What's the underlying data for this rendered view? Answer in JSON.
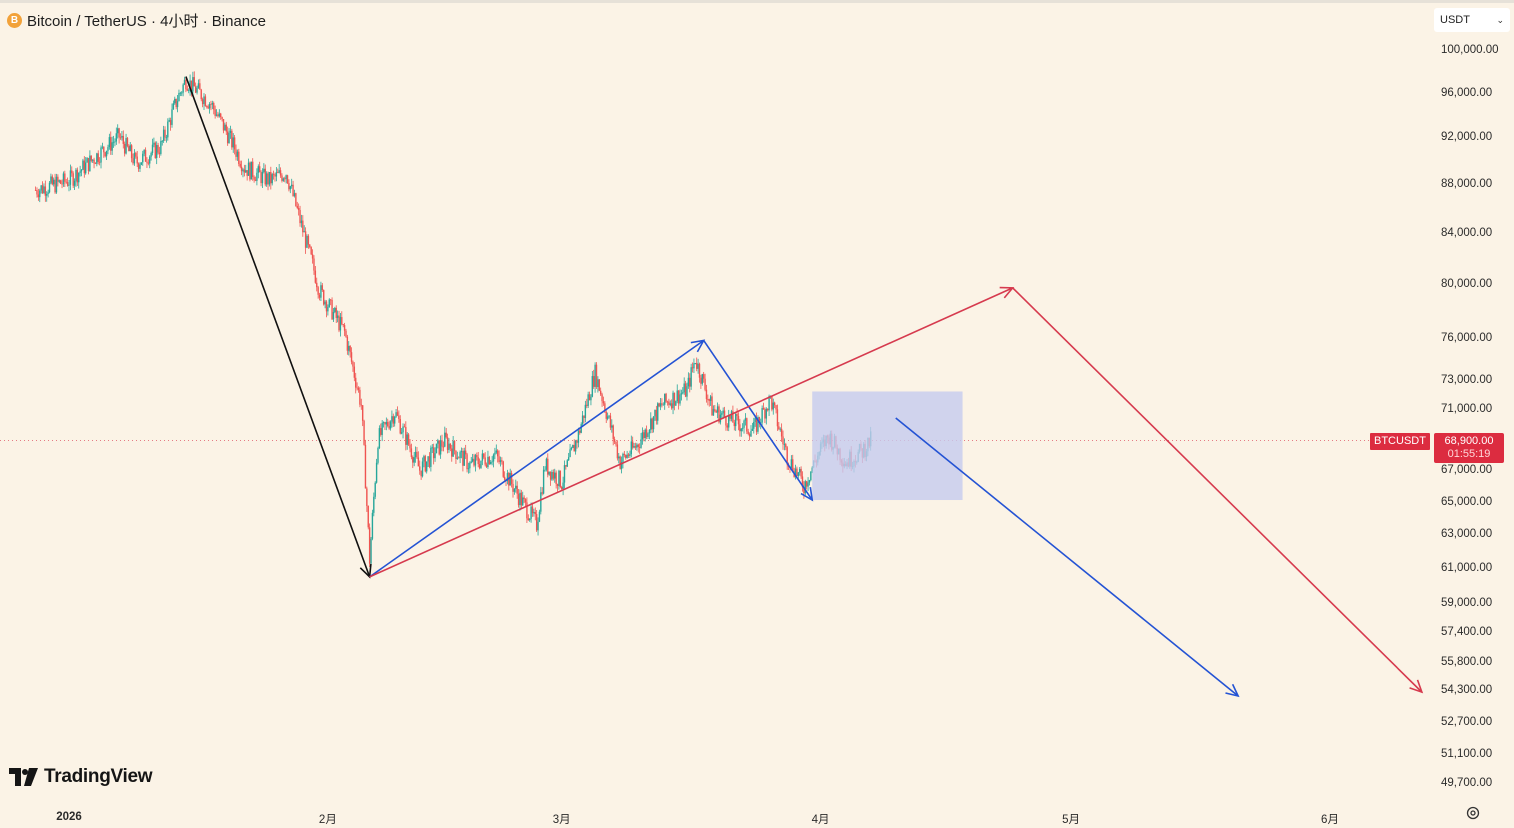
{
  "header": {
    "coin_glyph": "B",
    "title": "Bitcoin / TetherUS · 4小时 · Binance"
  },
  "currency_select": {
    "value": "USDT",
    "chevron": "⌄"
  },
  "price_axis": {
    "scale": "logarithmic",
    "ticks": [
      "100,000.00",
      "96,000.00",
      "92,000.00",
      "88,000.00",
      "84,000.00",
      "80,000.00",
      "76,000.00",
      "73,000.00",
      "71,000.00",
      "67,000.00",
      "65,000.00",
      "63,000.00",
      "61,000.00",
      "59,000.00",
      "57,400.00",
      "55,800.00",
      "54,300.00",
      "52,700.00",
      "51,100.00",
      "49,700.00"
    ]
  },
  "time_axis": {
    "labels": [
      "2026",
      "2月",
      "3月",
      "4月",
      "5月",
      "6月"
    ]
  },
  "last_price": {
    "symbol": "BTCUSDT",
    "price": "68,900.00",
    "countdown": "01:55:19",
    "color": "#dc2c40"
  },
  "branding": {
    "logo_text": "TradingView"
  },
  "colors": {
    "up": "#26a69a",
    "down": "#ef5350",
    "background": "#fbf3e6",
    "drawing_black": "#111111",
    "drawing_blue": "#2453d4",
    "drawing_red": "#d63a4e",
    "zone_fill": "#c5cbef"
  },
  "chart_data": {
    "type": "candlestick",
    "timeframe": "4小时",
    "x_range": [
      "2025-12-28",
      "2026-06-22"
    ],
    "price_points": [
      [
        "2025-12-28",
        87500
      ],
      [
        "2026-01-01",
        88300
      ],
      [
        "2026-01-04",
        90200
      ],
      [
        "2026-01-07",
        92100
      ],
      [
        "2026-01-09",
        89800
      ],
      [
        "2026-01-12",
        91200
      ],
      [
        "2026-01-14",
        95500
      ],
      [
        "2026-01-15",
        97200
      ],
      [
        "2026-01-18",
        95000
      ],
      [
        "2026-01-20",
        92300
      ],
      [
        "2026-01-22",
        89400
      ],
      [
        "2026-01-25",
        88300
      ],
      [
        "2026-01-27",
        89000
      ],
      [
        "2026-01-29",
        84200
      ],
      [
        "2026-01-31",
        79500
      ],
      [
        "2026-02-03",
        76400
      ],
      [
        "2026-02-05",
        71300
      ],
      [
        "2026-02-06",
        61500
      ],
      [
        "2026-02-07",
        69000
      ],
      [
        "2026-02-09",
        70800
      ],
      [
        "2026-02-12",
        67000
      ],
      [
        "2026-02-15",
        68900
      ],
      [
        "2026-02-18",
        67300
      ],
      [
        "2026-02-21",
        68000
      ],
      [
        "2026-02-24",
        65200
      ],
      [
        "2026-02-26",
        63600
      ],
      [
        "2026-02-27",
        67300
      ],
      [
        "2026-03-01",
        66200
      ],
      [
        "2026-03-03",
        69300
      ],
      [
        "2026-03-05",
        73500
      ],
      [
        "2026-03-08",
        67500
      ],
      [
        "2026-03-10",
        68600
      ],
      [
        "2026-03-13",
        71300
      ],
      [
        "2026-03-16",
        72300
      ],
      [
        "2026-03-17",
        74500
      ],
      [
        "2026-03-19",
        71000
      ],
      [
        "2026-03-21",
        70300
      ],
      [
        "2026-03-24",
        69600
      ],
      [
        "2026-03-26",
        71700
      ],
      [
        "2026-03-28",
        67900
      ],
      [
        "2026-03-30",
        66000
      ],
      [
        "2026-04-01",
        68300
      ],
      [
        "2026-04-02",
        69200
      ],
      [
        "2026-04-04",
        67500
      ],
      [
        "2026-04-06",
        68200
      ],
      [
        "2026-04-07",
        68900
      ]
    ],
    "drawings": [
      {
        "color": "black",
        "type": "arrow",
        "from": [
          "2026-01-15",
          97500
        ],
        "to": [
          "2026-02-06",
          60500
        ]
      },
      {
        "color": "blue",
        "type": "arrow",
        "from": [
          "2026-02-06",
          60500
        ],
        "to": [
          "2026-03-18",
          75800
        ]
      },
      {
        "color": "blue",
        "type": "arrow",
        "from": [
          "2026-03-18",
          75800
        ],
        "to": [
          "2026-03-31",
          65100
        ]
      },
      {
        "color": "red",
        "type": "arrow",
        "from": [
          "2026-02-06",
          60500
        ],
        "to": [
          "2026-04-24",
          79700
        ]
      },
      {
        "color": "red",
        "type": "arrow",
        "from": [
          "2026-04-24",
          79700
        ],
        "to": [
          "2026-06-12",
          54200
        ]
      },
      {
        "color": "blue",
        "type": "arrow",
        "from": [
          "2026-04-10",
          70400
        ],
        "to": [
          "2026-05-21",
          54000
        ]
      }
    ],
    "zone": {
      "from": [
        "2026-03-31",
        72200
      ],
      "to": [
        "2026-04-18",
        65100
      ]
    },
    "last_price_line": 68900
  }
}
